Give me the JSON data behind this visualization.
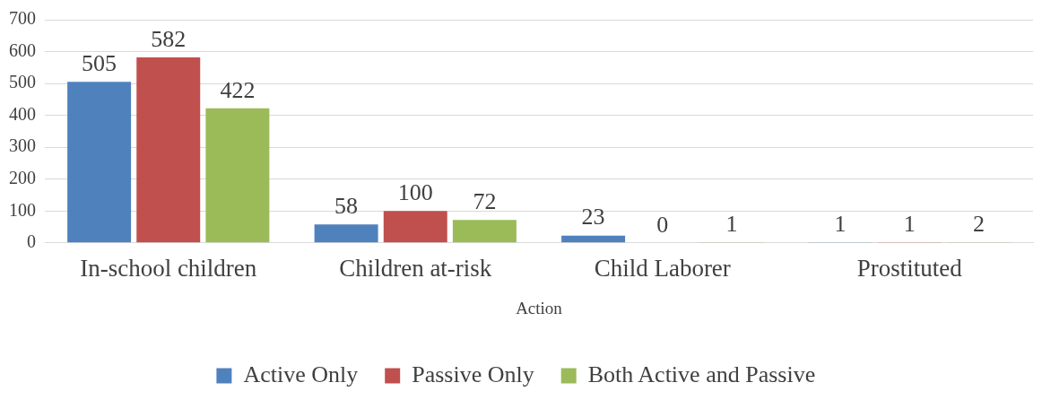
{
  "chart_data": {
    "type": "bar",
    "xlabel": "Action",
    "categories": [
      "In-school children",
      "Children at-risk",
      "Child Laborer",
      "Prostituted"
    ],
    "series": [
      {
        "name": "Active Only",
        "color": "#4f81bd",
        "values": [
          505,
          58,
          23,
          1
        ]
      },
      {
        "name": "Passive Only",
        "color": "#c0504d",
        "values": [
          582,
          100,
          0,
          1
        ]
      },
      {
        "name": "Both Active and Passive",
        "color": "#9bbb59",
        "values": [
          422,
          72,
          1,
          2
        ]
      }
    ],
    "ylim": [
      0,
      700
    ],
    "yticks": [
      0,
      100,
      200,
      300,
      400,
      500,
      600,
      700
    ],
    "grid": "y",
    "legend": "bottom",
    "data_labels": true
  }
}
